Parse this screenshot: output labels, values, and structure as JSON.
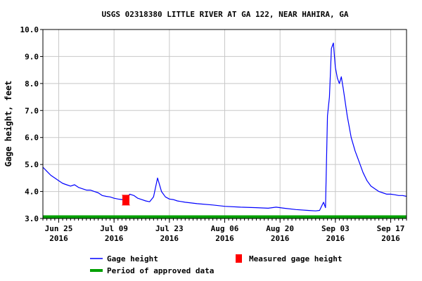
{
  "chart_data": {
    "type": "line",
    "title": "USGS 02318380 LITTLE RIVER AT GA 122, NEAR HAHIRA, GA",
    "xlabel": "",
    "ylabel": "Gage height, feet",
    "ylim": [
      3.0,
      10.0
    ],
    "xlim": [
      "2016-06-21",
      "2016-09-21"
    ],
    "grid": true,
    "yticks": [
      "3.0",
      "4.0",
      "5.0",
      "6.0",
      "7.0",
      "8.0",
      "9.0",
      "10.0"
    ],
    "xticks": [
      {
        "date": "2016-06-25",
        "label1": "Jun 25",
        "label2": "2016"
      },
      {
        "date": "2016-07-09",
        "label1": "Jul 09",
        "label2": "2016"
      },
      {
        "date": "2016-07-23",
        "label1": "Jul 23",
        "label2": "2016"
      },
      {
        "date": "2016-08-06",
        "label1": "Aug 06",
        "label2": "2016"
      },
      {
        "date": "2016-08-20",
        "label1": "Aug 20",
        "label2": "2016"
      },
      {
        "date": "2016-09-03",
        "label1": "Sep 03",
        "label2": "2016"
      },
      {
        "date": "2016-09-17",
        "label1": "Sep 17",
        "label2": "2016"
      }
    ],
    "series": [
      {
        "name": "Gage height",
        "color": "#0000ff",
        "points": [
          [
            "2016-06-21",
            4.9
          ],
          [
            "2016-06-22",
            4.75
          ],
          [
            "2016-06-23",
            4.6
          ],
          [
            "2016-06-24",
            4.5
          ],
          [
            "2016-06-25",
            4.4
          ],
          [
            "2016-06-26",
            4.3
          ],
          [
            "2016-06-27",
            4.25
          ],
          [
            "2016-06-28",
            4.2
          ],
          [
            "2016-06-29",
            4.25
          ],
          [
            "2016-06-30",
            4.15
          ],
          [
            "2016-07-01",
            4.1
          ],
          [
            "2016-07-02",
            4.05
          ],
          [
            "2016-07-03",
            4.05
          ],
          [
            "2016-07-04",
            4.0
          ],
          [
            "2016-07-05",
            3.95
          ],
          [
            "2016-07-06",
            3.85
          ],
          [
            "2016-07-07",
            3.82
          ],
          [
            "2016-07-08",
            3.8
          ],
          [
            "2016-07-09",
            3.75
          ],
          [
            "2016-07-10",
            3.72
          ],
          [
            "2016-07-11",
            3.7
          ],
          [
            "2016-07-12",
            3.75
          ],
          [
            "2016-07-13",
            3.9
          ],
          [
            "2016-07-14",
            3.85
          ],
          [
            "2016-07-15",
            3.75
          ],
          [
            "2016-07-16",
            3.7
          ],
          [
            "2016-07-17",
            3.65
          ],
          [
            "2016-07-18",
            3.62
          ],
          [
            "2016-07-19",
            3.8
          ],
          [
            "2016-07-20",
            4.5
          ],
          [
            "2016-07-21",
            4.0
          ],
          [
            "2016-07-22",
            3.8
          ],
          [
            "2016-07-23",
            3.72
          ],
          [
            "2016-07-24",
            3.7
          ],
          [
            "2016-07-25",
            3.65
          ],
          [
            "2016-07-27",
            3.6
          ],
          [
            "2016-07-30",
            3.55
          ],
          [
            "2016-08-03",
            3.5
          ],
          [
            "2016-08-06",
            3.45
          ],
          [
            "2016-08-10",
            3.42
          ],
          [
            "2016-08-14",
            3.4
          ],
          [
            "2016-08-17",
            3.38
          ],
          [
            "2016-08-19",
            3.42
          ],
          [
            "2016-08-21",
            3.38
          ],
          [
            "2016-08-24",
            3.33
          ],
          [
            "2016-08-27",
            3.3
          ],
          [
            "2016-08-29",
            3.28
          ],
          [
            "2016-08-30",
            3.3
          ],
          [
            "2016-08-31",
            3.6
          ],
          [
            "2016-08-31T12",
            3.4
          ],
          [
            "2016-09-01",
            6.8
          ],
          [
            "2016-09-01T12",
            7.5
          ],
          [
            "2016-09-02",
            9.3
          ],
          [
            "2016-09-02T12",
            9.5
          ],
          [
            "2016-09-03",
            8.6
          ],
          [
            "2016-09-03T12",
            8.2
          ],
          [
            "2016-09-04",
            8.0
          ],
          [
            "2016-09-04T12",
            8.25
          ],
          [
            "2016-09-05",
            7.8
          ],
          [
            "2016-09-06",
            6.8
          ],
          [
            "2016-09-07",
            6.0
          ],
          [
            "2016-09-08",
            5.5
          ],
          [
            "2016-09-09",
            5.1
          ],
          [
            "2016-09-10",
            4.7
          ],
          [
            "2016-09-11",
            4.4
          ],
          [
            "2016-09-12",
            4.2
          ],
          [
            "2016-09-13",
            4.1
          ],
          [
            "2016-09-14",
            4.0
          ],
          [
            "2016-09-15",
            3.95
          ],
          [
            "2016-09-16",
            3.9
          ],
          [
            "2016-09-17",
            3.9
          ],
          [
            "2016-09-18",
            3.88
          ],
          [
            "2016-09-19",
            3.85
          ],
          [
            "2016-09-20",
            3.85
          ],
          [
            "2016-09-21",
            3.82
          ]
        ]
      },
      {
        "name": "Measured gage height",
        "color": "#ff0000",
        "type": "marker",
        "points": [
          [
            "2016-07-12",
            3.68
          ]
        ]
      },
      {
        "name": "Period of approved data",
        "color": "#00a000",
        "type": "band",
        "points": [
          [
            "2016-06-21",
            3.0
          ],
          [
            "2016-09-21",
            3.0
          ]
        ]
      }
    ],
    "legend": [
      {
        "label": "Gage height",
        "kind": "line",
        "color": "#0000ff"
      },
      {
        "label": "Measured gage height",
        "kind": "marker",
        "color": "#ff0000"
      },
      {
        "label": "Period of approved data",
        "kind": "band",
        "color": "#00a000"
      }
    ],
    "legend_position": "bottom"
  }
}
